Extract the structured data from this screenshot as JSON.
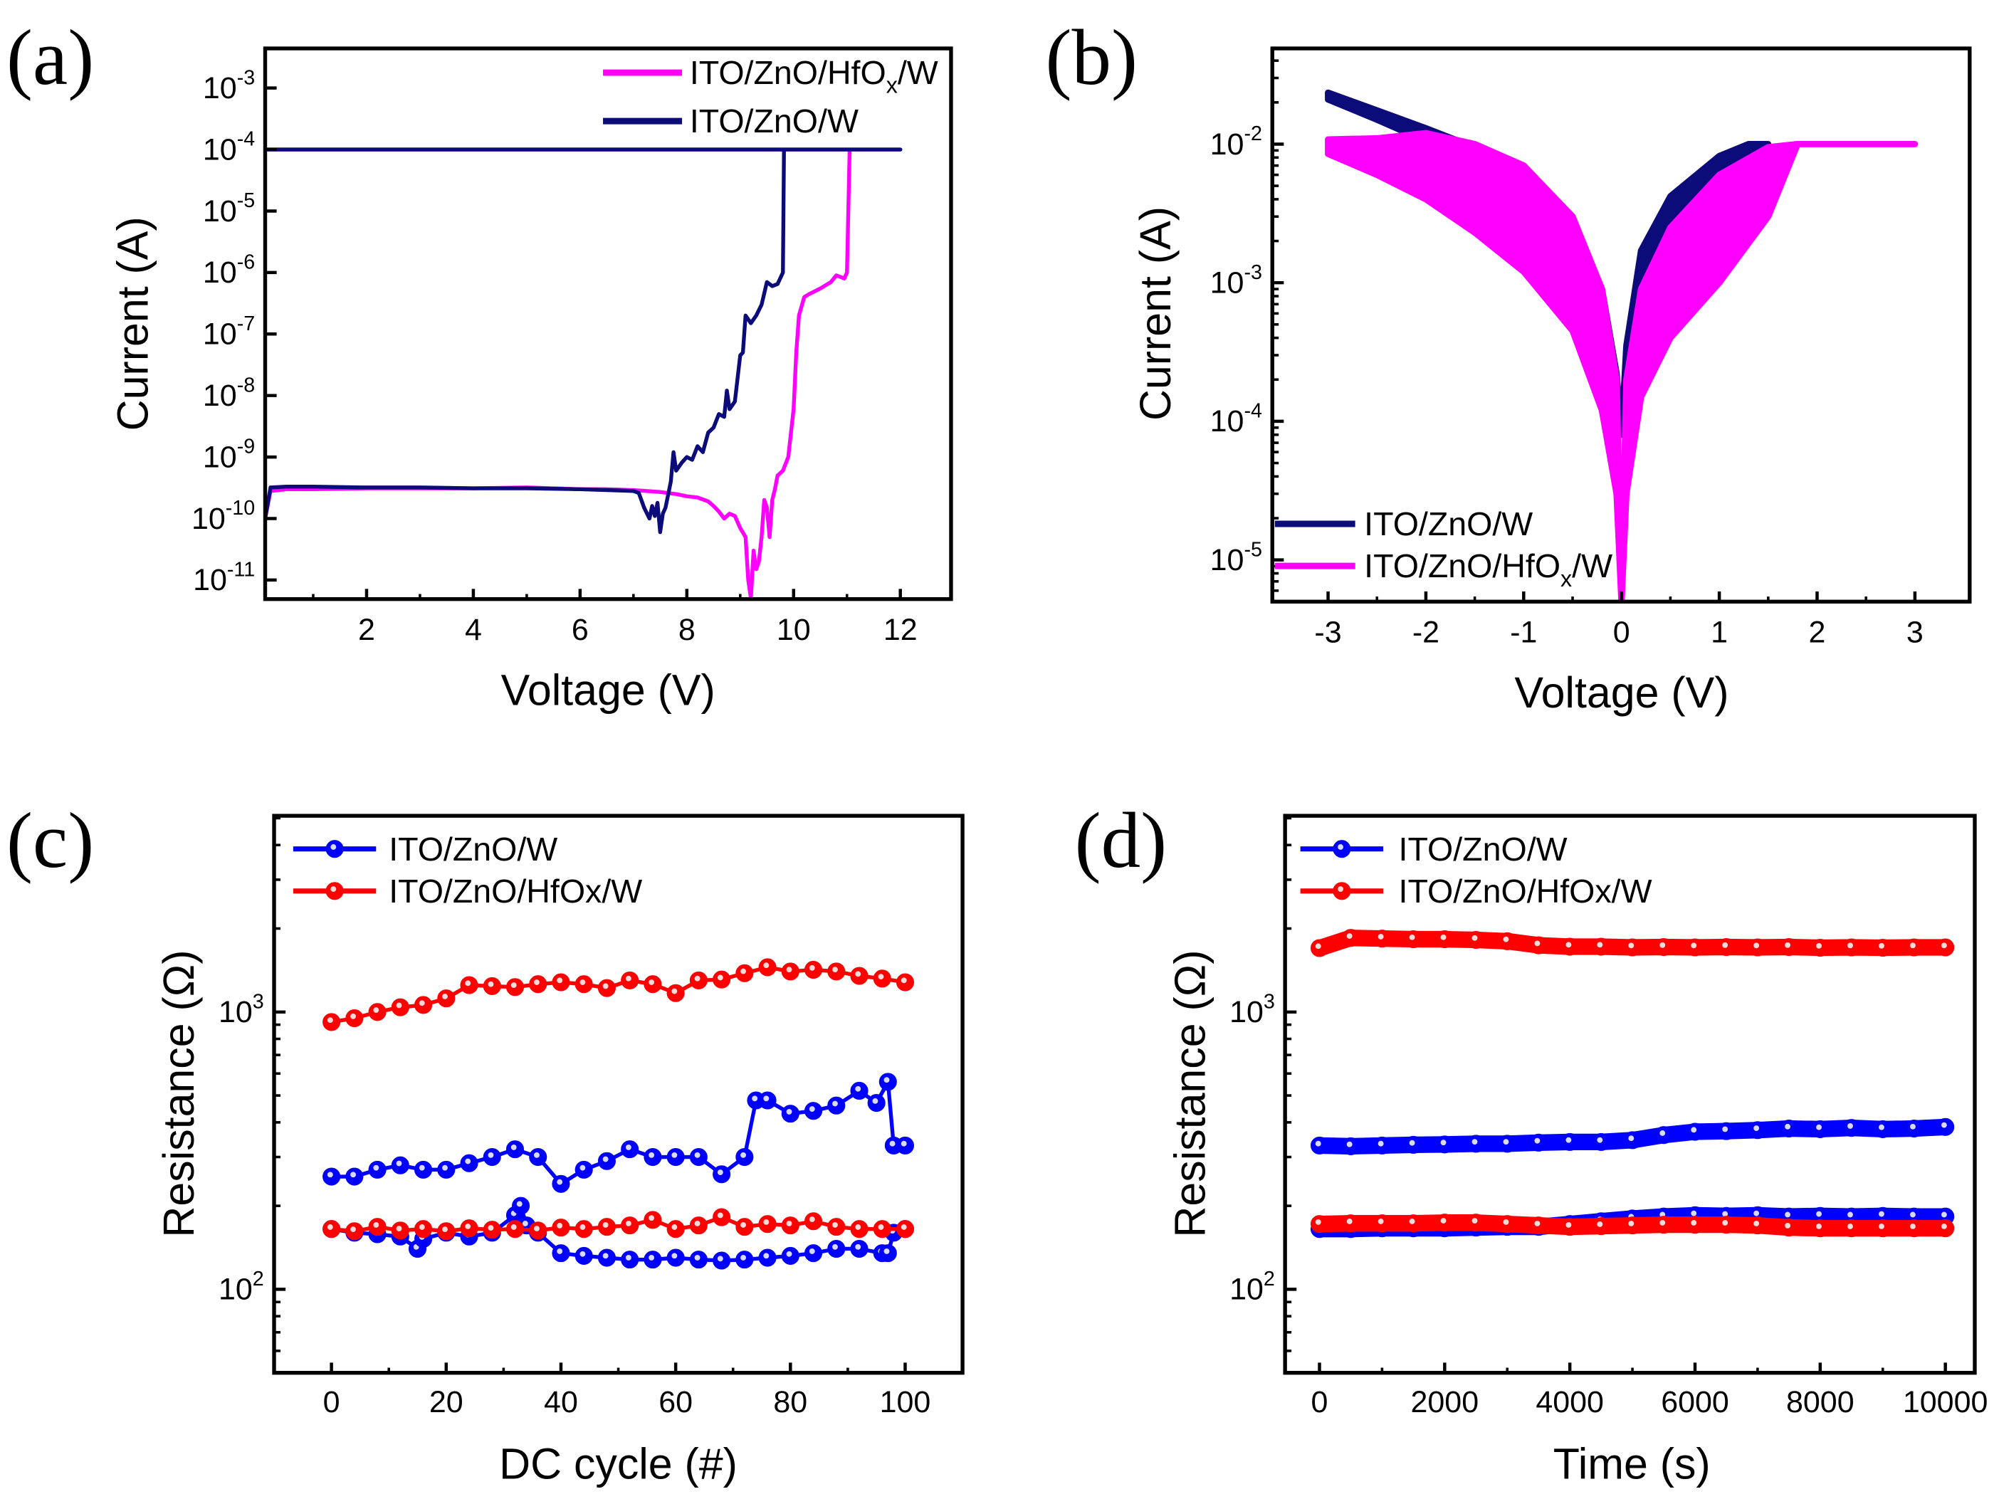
{
  "panel_labels": [
    "(a)",
    "(b)",
    "(c)",
    "(d)"
  ],
  "chart_data": [
    {
      "type": "line",
      "xlabel": "Voltage (V)",
      "ylabel": "Current (A)",
      "xscale": "linear",
      "yscale": "log",
      "xlim": [
        0.1,
        12.95
      ],
      "ylim": [
        4.9e-12,
        0.0044
      ],
      "x_ticks": [
        2,
        4,
        6,
        8,
        10,
        12
      ],
      "x_tick_labels": [
        "2",
        "4",
        "6",
        "8",
        "10",
        "12"
      ],
      "x_minor_ticks": [
        1,
        3,
        5,
        7,
        9,
        11
      ],
      "y_ticks": [
        1e-11,
        1e-10,
        1e-09,
        1e-08,
        1e-07,
        1e-06,
        1e-05,
        0.0001,
        0.001
      ],
      "y_tick_labels": [
        "10^-11",
        "10^-10",
        "10^-9",
        "10^-8",
        "10^-7",
        "10^-6",
        "10^-5",
        "10^-4",
        "10^-3"
      ],
      "legend_position": "top-right",
      "series": [
        {
          "name": "ITO/ZnO/HfOx/W",
          "color": "#ff00ff",
          "x": [
            0.1,
            0.2,
            0.5,
            1,
            2,
            3,
            4,
            5,
            6,
            6.5,
            7,
            7.5,
            7.8,
            8,
            8.2,
            8.4,
            8.5,
            8.6,
            8.7,
            8.8,
            8.9,
            9.0,
            9.1,
            9.15,
            9.2,
            9.25,
            9.3,
            9.35,
            9.4,
            9.45,
            9.5,
            9.55,
            9.6,
            9.65,
            9.7,
            9.8,
            9.9,
            10.0,
            10.05,
            10.1,
            10.2,
            10.3,
            10.5,
            10.7,
            10.8,
            10.95,
            11.0,
            11.05,
            12,
            0.1
          ],
          "y": [
            1e-10,
            2.8e-10,
            3e-10,
            3e-10,
            3.1e-10,
            3.1e-10,
            3.1e-10,
            3.2e-10,
            3e-10,
            3e-10,
            2.9e-10,
            2.7e-10,
            2.5e-10,
            2.3e-10,
            2.2e-10,
            1.9e-10,
            1.6e-10,
            1.3e-10,
            1e-10,
            1.2e-10,
            1.1e-10,
            7e-11,
            5e-11,
            1e-11,
            5e-12,
            3e-11,
            1.5e-11,
            2e-11,
            5e-11,
            2e-10,
            1.5e-10,
            5e-11,
            2e-10,
            3e-10,
            5e-10,
            6e-10,
            1e-09,
            6e-09,
            5e-08,
            2e-07,
            4e-07,
            4.5e-07,
            5.5e-07,
            7e-07,
            9e-07,
            8e-07,
            1e-06,
            0.0001,
            0.0001,
            0.0001
          ]
        },
        {
          "name": "ITO/ZnO/W",
          "color": "#0b0b7a",
          "x": [
            0.1,
            0.2,
            0.5,
            1,
            2,
            3,
            4,
            5,
            6,
            7,
            7.1,
            7.2,
            7.3,
            7.35,
            7.4,
            7.45,
            7.5,
            7.55,
            7.6,
            7.7,
            7.75,
            7.8,
            7.9,
            8,
            8.1,
            8.2,
            8.3,
            8.4,
            8.5,
            8.6,
            8.7,
            8.75,
            8.8,
            8.9,
            9,
            9.05,
            9.1,
            9.2,
            9.3,
            9.4,
            9.5,
            9.6,
            9.7,
            9.8,
            9.82,
            9.85,
            12,
            0.1
          ],
          "y": [
            1e-10,
            3.2e-10,
            3.3e-10,
            3.3e-10,
            3.2e-10,
            3.2e-10,
            3.1e-10,
            3.1e-10,
            3e-10,
            2.8e-10,
            2.6e-10,
            1.5e-10,
            1e-10,
            1.6e-10,
            1.1e-10,
            1.8e-10,
            6e-11,
            1.2e-10,
            1.5e-10,
            4e-10,
            1.2e-09,
            6e-10,
            8e-10,
            1e-09,
            9e-10,
            1.5e-09,
            1.2e-09,
            2.5e-09,
            3e-09,
            5e-09,
            4.5e-09,
            1.2e-08,
            6e-09,
            8e-09,
            4.5e-08,
            5e-08,
            2e-07,
            1.5e-07,
            2e-07,
            3e-07,
            7e-07,
            6e-07,
            6.5e-07,
            1e-06,
            0.0001,
            0.0001,
            0.0001,
            0.0001
          ]
        }
      ]
    },
    {
      "type": "area",
      "xlabel": "Voltage (V)",
      "ylabel": "Current (A)",
      "xscale": "linear",
      "yscale": "log",
      "xlim": [
        -3.57,
        3.56
      ],
      "ylim": [
        5e-06,
        0.049
      ],
      "x_ticks": [
        -3,
        -2,
        -1,
        0,
        1,
        2,
        3
      ],
      "x_tick_labels": [
        "-3",
        "-2",
        "-1",
        "0",
        "1",
        "2",
        "3"
      ],
      "x_minor_ticks": [
        -2.5,
        -1.5,
        -0.5,
        0.5,
        1.5,
        2.5
      ],
      "y_ticks": [
        1e-05,
        0.0001,
        0.001,
        0.01
      ],
      "y_tick_labels": [
        "10^-5",
        "10^-4",
        "10^-3",
        "10^-2"
      ],
      "legend_position": "bottom-left",
      "series": [
        {
          "name": "ITO/ZnO/W",
          "color": "#0b0b7a",
          "v": [
            -3,
            -2.5,
            -2,
            -1.5,
            -1,
            -0.5,
            -0.2,
            -0.05,
            0,
            0.05,
            0.2,
            0.5,
            1,
            1.3,
            1.5
          ],
          "upper": [
            0.0235,
            0.0175,
            0.013,
            0.0095,
            0.0065,
            0.0028,
            0.0009,
            0.00022,
            8e-05,
            0.00035,
            0.0017,
            0.0042,
            0.0082,
            0.01,
            0.01
          ],
          "lower": [
            0.021,
            0.015,
            0.0105,
            0.0065,
            0.0032,
            0.0011,
            0.00035,
            0.00011,
            8e-05,
            0.00014,
            0.0007,
            0.0018,
            0.0045,
            0.008,
            0.01
          ]
        },
        {
          "name": "ITO/ZnO/HfOx/W",
          "color": "#ff00ff",
          "v": [
            -3,
            -2.5,
            -2,
            -1.5,
            -1,
            -0.5,
            -0.2,
            -0.05,
            0,
            0.05,
            0.2,
            0.5,
            1,
            1.5,
            1.8,
            3
          ],
          "upper": [
            0.0108,
            0.011,
            0.012,
            0.01,
            0.007,
            0.003,
            0.0009,
            0.0002,
            5e-06,
            0.0002,
            0.0009,
            0.0025,
            0.006,
            0.0095,
            0.01,
            0.01
          ],
          "lower": [
            0.0085,
            0.006,
            0.004,
            0.0023,
            0.0012,
            0.00045,
            0.00012,
            3e-05,
            5e-06,
            3e-05,
            0.00015,
            0.0004,
            0.001,
            0.003,
            0.01,
            0.01
          ]
        }
      ]
    },
    {
      "type": "line",
      "xlabel": "DC cycle (#)",
      "ylabel": "Resistance (Ω)",
      "xscale": "linear",
      "yscale": "log",
      "xlim": [
        -10,
        110
      ],
      "ylim": [
        50,
        5100
      ],
      "x_ticks": [
        0,
        20,
        40,
        60,
        80,
        100
      ],
      "x_tick_labels": [
        "0",
        "20",
        "40",
        "60",
        "80",
        "100"
      ],
      "x_minor_ticks": [
        10,
        30,
        50,
        70,
        90
      ],
      "y_ticks": [
        100,
        1000
      ],
      "y_tick_labels": [
        "10^2",
        "10^3"
      ],
      "legend_position": "top-left",
      "series": [
        {
          "name": "ITO/ZnO/W",
          "color": "#0000ff",
          "hrs": {
            "x": [
              0,
              4,
              8,
              12,
              16,
              20,
              24,
              28,
              32,
              36,
              40,
              44,
              48,
              52,
              56,
              60,
              64,
              68,
              72,
              74,
              76,
              80,
              84,
              88,
              92,
              95,
              97,
              98,
              100
            ],
            "y": [
              255,
              255,
              270,
              280,
              270,
              270,
              285,
              300,
              320,
              300,
              240,
              270,
              290,
              320,
              300,
              300,
              300,
              260,
              300,
              480,
              480,
              430,
              440,
              460,
              520,
              470,
              560,
              330,
              330
            ]
          },
          "lrs": {
            "x": [
              0,
              4,
              8,
              12,
              15,
              16,
              20,
              24,
              28,
              32,
              33,
              34,
              36,
              40,
              44,
              48,
              52,
              56,
              60,
              64,
              68,
              72,
              76,
              80,
              84,
              88,
              92,
              96,
              97,
              98,
              100
            ],
            "y": [
              165,
              160,
              158,
              155,
              140,
              152,
              160,
              155,
              160,
              185,
              200,
              170,
              160,
              135,
              132,
              130,
              128,
              128,
              130,
              128,
              127,
              128,
              130,
              132,
              135,
              140,
              140,
              135,
              135,
              160,
              165
            ]
          }
        },
        {
          "name": "ITO/ZnO/HfOx/W",
          "color": "#ff0000",
          "hrs": {
            "x": [
              0,
              4,
              8,
              12,
              16,
              20,
              24,
              28,
              32,
              36,
              40,
              44,
              48,
              52,
              56,
              60,
              64,
              68,
              72,
              76,
              80,
              84,
              88,
              92,
              96,
              100
            ],
            "y": [
              920,
              950,
              1000,
              1040,
              1060,
              1120,
              1250,
              1240,
              1230,
              1260,
              1280,
              1260,
              1220,
              1300,
              1260,
              1170,
              1300,
              1310,
              1380,
              1450,
              1400,
              1420,
              1400,
              1350,
              1320,
              1280
            ]
          },
          "lrs": {
            "x": [
              0,
              4,
              8,
              12,
              16,
              20,
              24,
              28,
              32,
              36,
              40,
              44,
              48,
              52,
              56,
              60,
              64,
              68,
              72,
              76,
              80,
              84,
              88,
              92,
              96,
              100
            ],
            "y": [
              165,
              162,
              168,
              163,
              165,
              162,
              166,
              164,
              165,
              163,
              167,
              165,
              168,
              170,
              178,
              165,
              170,
              182,
              168,
              172,
              170,
              176,
              168,
              165,
              165,
              165
            ]
          }
        }
      ]
    },
    {
      "type": "line",
      "xlabel": "Time (s)",
      "ylabel": "Resistance (Ω)",
      "xscale": "linear",
      "yscale": "log",
      "xlim": [
        -550,
        10470
      ],
      "ylim": [
        50,
        5100
      ],
      "x_ticks": [
        0,
        2000,
        4000,
        6000,
        8000,
        10000
      ],
      "x_tick_labels": [
        "0",
        "2000",
        "4000",
        "6000",
        "8000",
        "10000"
      ],
      "x_minor_ticks": [
        1000,
        3000,
        5000,
        7000,
        9000
      ],
      "y_ticks": [
        100,
        1000
      ],
      "y_tick_labels": [
        "10^2",
        "10^3"
      ],
      "legend_position": "top-left",
      "series": [
        {
          "name": "ITO/ZnO/W",
          "color": "#0000ff",
          "hrs": {
            "x": [
              0,
              500,
              1000,
              1500,
              2000,
              2500,
              3000,
              3500,
              4000,
              4500,
              5000,
              5500,
              6000,
              6500,
              7000,
              7500,
              8000,
              8500,
              9000,
              9500,
              10000
            ],
            "y": [
              330,
              328,
              330,
              332,
              333,
              335,
              335,
              338,
              340,
              340,
              345,
              360,
              370,
              372,
              375,
              380,
              378,
              382,
              378,
              380,
              385
            ]
          },
          "lrs": {
            "x": [
              0,
              500,
              1000,
              1500,
              2000,
              2500,
              3000,
              3500,
              4000,
              4500,
              5000,
              5500,
              6000,
              6500,
              7000,
              7500,
              8000,
              8500,
              9000,
              9500,
              10000
            ],
            "y": [
              165,
              165,
              166,
              166,
              166,
              167,
              168,
              168,
              172,
              176,
              180,
              183,
              185,
              184,
              185,
              183,
              184,
              183,
              184,
              183,
              183
            ]
          }
        },
        {
          "name": "ITO/ZnO/HfOx/W",
          "color": "#ff0000",
          "hrs": {
            "x": [
              0,
              500,
              1000,
              1500,
              2000,
              2500,
              3000,
              3500,
              4000,
              4500,
              5000,
              5500,
              6000,
              6500,
              7000,
              7500,
              8000,
              8500,
              9000,
              9500,
              10000
            ],
            "y": [
              1700,
              1850,
              1840,
              1830,
              1830,
              1820,
              1800,
              1740,
              1720,
              1720,
              1710,
              1715,
              1710,
              1715,
              1710,
              1715,
              1705,
              1710,
              1705,
              1710,
              1710
            ]
          },
          "lrs": {
            "x": [
              0,
              500,
              1000,
              1500,
              2000,
              2500,
              3000,
              3500,
              4000,
              4500,
              5000,
              5500,
              6000,
              6500,
              7000,
              7500,
              8000,
              8500,
              9000,
              9500,
              10000
            ],
            "y": [
              172,
              173,
              173,
              173,
              174,
              174,
              172,
              170,
              168,
              169,
              170,
              171,
              171,
              171,
              170,
              167,
              166,
              166,
              166,
              166,
              166
            ]
          }
        }
      ]
    }
  ]
}
